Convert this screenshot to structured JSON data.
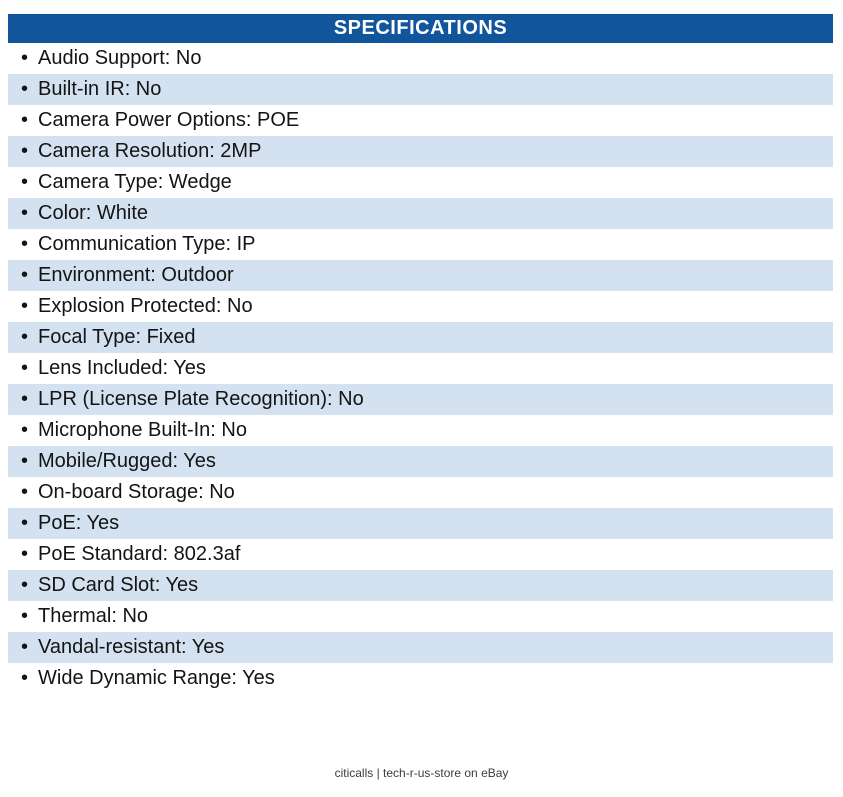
{
  "header": {
    "title": "SPECIFICATIONS"
  },
  "icons": {
    "bullet": "•"
  },
  "colors": {
    "header_bg": "#11559D",
    "header_text": "#FFFFFF",
    "row_stripe": "#D3E1F1",
    "row_plain": "#FFFFFF",
    "body_text": "#141414",
    "footer_text": "#3D3D3D"
  },
  "specs": [
    "Audio Support: No",
    "Built-in IR: No",
    "Camera Power Options: POE",
    "Camera Resolution: 2MP",
    "Camera Type: Wedge",
    "Color: White",
    "Communication Type: IP",
    "Environment: Outdoor",
    "Explosion Protected: No",
    "Focal Type: Fixed",
    "Lens Included: Yes",
    "LPR (License Plate Recognition): No",
    "Microphone Built-In: No",
    "Mobile/Rugged: Yes",
    "On-board Storage: No",
    "PoE: Yes",
    "PoE Standard: 802.3af",
    "SD Card Slot: Yes",
    "Thermal: No",
    "Vandal-resistant: Yes",
    "Wide Dynamic Range: Yes"
  ],
  "footer": {
    "text": "citicalls | tech-r-us-store on eBay"
  }
}
